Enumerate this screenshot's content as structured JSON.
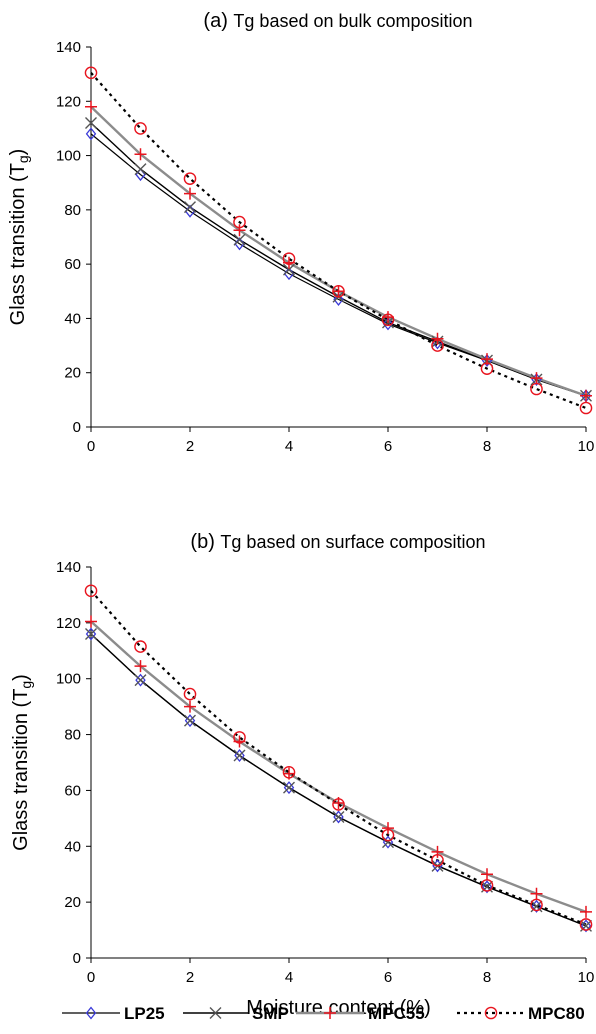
{
  "chart_data": [
    {
      "type": "line",
      "title_prefix": "(a)",
      "title": "Tg based on bulk composition",
      "xlabel": "",
      "ylabel": "Glass transition (T",
      "ylabel_sub": "g",
      "ylabel_close": ")",
      "xlim": [
        0,
        10
      ],
      "ylim": [
        0,
        140
      ],
      "xticks": [
        0,
        2,
        4,
        6,
        8,
        10
      ],
      "yticks": [
        0,
        20,
        40,
        60,
        80,
        100,
        120,
        140
      ],
      "grid": false,
      "x": [
        0,
        1,
        2,
        3,
        4,
        5,
        6,
        7,
        8,
        9,
        10
      ],
      "series": [
        {
          "name": "LP25",
          "values": [
            108,
            93,
            79.5,
            67.5,
            56.5,
            47,
            38,
            31,
            24.5,
            17.5,
            11.5
          ]
        },
        {
          "name": "SMP",
          "values": [
            112,
            95,
            81,
            69,
            58,
            48,
            38.5,
            31.5,
            24.5,
            17.5,
            11.5
          ]
        },
        {
          "name": "MPC55",
          "values": [
            118,
            100.5,
            86,
            72.5,
            60.5,
            50,
            40.5,
            32.5,
            25,
            18,
            11.5
          ]
        },
        {
          "name": "MPC80",
          "values": [
            130.5,
            110,
            91.5,
            75.5,
            62,
            50,
            39.5,
            30,
            21.5,
            14,
            7
          ]
        }
      ]
    },
    {
      "type": "line",
      "title_prefix": "(b)",
      "title": "Tg based on surface composition",
      "xlabel": "Moisture content (%)",
      "ylabel": "Glass transition (T",
      "ylabel_sub": "g",
      "ylabel_close": ")",
      "xlim": [
        0,
        10
      ],
      "ylim": [
        0,
        140
      ],
      "xticks": [
        0,
        2,
        4,
        6,
        8,
        10
      ],
      "yticks": [
        0,
        20,
        40,
        60,
        80,
        100,
        120,
        140
      ],
      "grid": false,
      "x": [
        0,
        1,
        2,
        3,
        4,
        5,
        6,
        7,
        8,
        9,
        10
      ],
      "series": [
        {
          "name": "LP25",
          "values": [
            116,
            99.5,
            85,
            72.5,
            61,
            50.5,
            41.5,
            33,
            25.5,
            18.5,
            11.5
          ]
        },
        {
          "name": "SMP",
          "values": [
            116,
            99.5,
            85,
            72.5,
            61,
            50.5,
            41.5,
            33,
            25.5,
            18.5,
            11.5
          ]
        },
        {
          "name": "MPC55",
          "values": [
            120.5,
            104.5,
            90,
            77.5,
            66,
            55.5,
            46.5,
            38,
            30,
            23,
            16.5
          ]
        },
        {
          "name": "MPC80",
          "values": [
            131.5,
            111.5,
            94.5,
            79,
            66.5,
            55,
            44,
            35,
            26,
            19,
            12
          ]
        }
      ]
    }
  ],
  "legend": {
    "placement": "bottom",
    "items": [
      "LP25",
      "SMP",
      "MPC55",
      "MPC80"
    ]
  },
  "styles": {
    "LP25": {
      "line": "#000000",
      "dash": "",
      "width": 1.2,
      "marker": "diamond",
      "marker_color": "#3a3ad8"
    },
    "SMP": {
      "line": "#000000",
      "dash": "",
      "width": 1.4,
      "marker": "x",
      "marker_color": "#555555"
    },
    "MPC55": {
      "line": "#8c8c8c",
      "dash": "",
      "width": 2.4,
      "marker": "plus",
      "marker_color": "#e8141e"
    },
    "MPC80": {
      "line": "#000000",
      "dash": "3 4",
      "width": 2.2,
      "marker": "circle",
      "marker_color": "#e8141e"
    }
  }
}
